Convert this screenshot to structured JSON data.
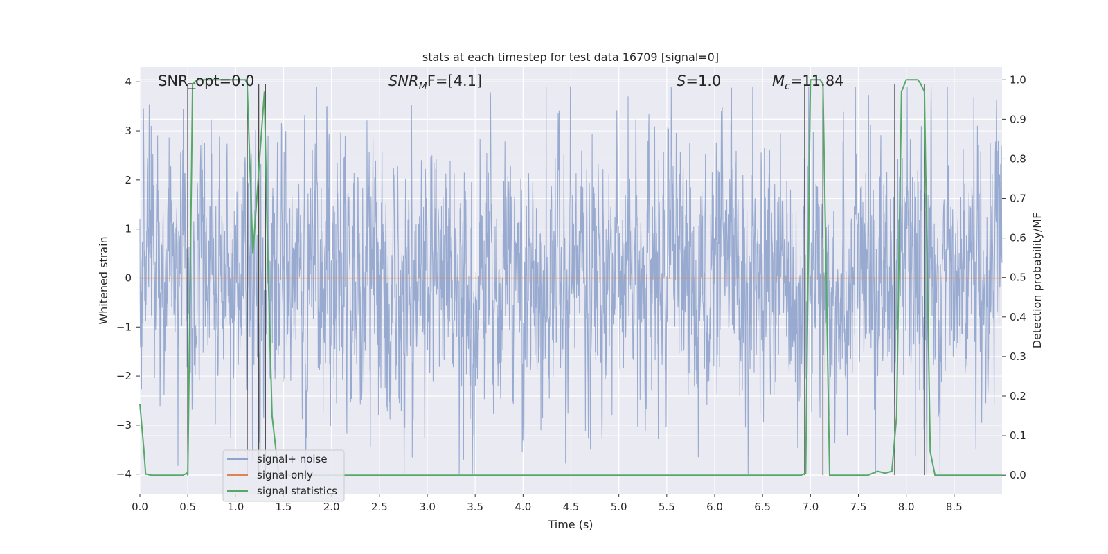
{
  "chart_data": {
    "type": "line",
    "title": "stats at each timestep for test data 16709 [signal=0]",
    "xlabel": "Time (s)",
    "ylabel_left": "Whitened strain",
    "ylabel_right": "Detection probability/MF",
    "xlim": [
      0.0,
      9.0
    ],
    "ylim_left": [
      -4.4,
      4.3
    ],
    "ylim_right": [
      -0.047,
      1.032
    ],
    "grid": true,
    "legend_placement": "lower-left",
    "x_ticks": [
      "0.0",
      "0.5",
      "1.0",
      "1.5",
      "2.0",
      "2.5",
      "3.0",
      "3.5",
      "4.0",
      "4.5",
      "5.0",
      "5.5",
      "6.0",
      "6.5",
      "7.0",
      "7.5",
      "8.0",
      "8.5"
    ],
    "y_ticks_left": [
      "4",
      "3",
      "2",
      "1",
      "0",
      "−1",
      "−2",
      "−3",
      "−4"
    ],
    "y_ticks_right": [
      "1.0",
      "0.9",
      "0.8",
      "0.7",
      "0.6",
      "0.5",
      "0.4",
      "0.3",
      "0.2",
      "0.1",
      "0.0"
    ],
    "annotations": {
      "snr_opt": "SNR_opt=0.0",
      "snr_mf_base": "SNR",
      "snr_mf_sub": "M",
      "snr_mf_rest": "F=[4.1]",
      "s_stat_base": "S",
      "s_stat_rest": "=1.0",
      "mc_base": "M",
      "mc_sub": "c",
      "mc_rest": "=11.84"
    },
    "series": [
      {
        "name": "signal+ noise",
        "color": "#8fa3cc",
        "description_of_envelope": "dense whitened noise approx between -2.5 and 3.0 with spikes to ±4",
        "amplitude_range": [
          -4.0,
          3.9
        ]
      },
      {
        "name": "signal only",
        "color": "#dd8452",
        "values_constant": 0.0
      },
      {
        "name": "signal statistics",
        "color": "#55a868",
        "x": [
          0.0,
          0.04,
          0.06,
          0.12,
          0.2,
          0.3,
          0.4,
          0.45,
          0.49,
          0.5,
          0.55,
          0.6,
          0.8,
          1.0,
          1.1,
          1.12,
          1.18,
          1.25,
          1.3,
          1.33,
          1.38,
          1.45,
          1.5,
          2.0,
          3.0,
          4.0,
          5.0,
          6.0,
          6.9,
          6.95,
          7.0,
          7.1,
          7.13,
          7.2,
          7.25,
          7.5,
          7.6,
          7.7,
          7.78,
          7.85,
          7.9,
          7.95,
          8.0,
          8.05,
          8.12,
          8.15,
          8.19,
          8.25,
          8.3,
          8.5,
          8.75,
          9.0
        ],
        "y": [
          0.18,
          0.07,
          0.003,
          0.0,
          0.0,
          0.0,
          0.0,
          0.0,
          0.005,
          0.0,
          0.99,
          1.0,
          1.0,
          1.0,
          1.0,
          0.99,
          0.56,
          0.8,
          0.97,
          0.6,
          0.15,
          0.0,
          0.0,
          0.0,
          0.0,
          0.0,
          0.0,
          0.0,
          0.0,
          0.005,
          1.0,
          1.0,
          0.99,
          0.0,
          0.0,
          0.0,
          0.0,
          0.01,
          0.005,
          0.01,
          0.15,
          0.97,
          1.0,
          1.0,
          1.0,
          0.99,
          0.97,
          0.06,
          0.0,
          0.0,
          0.0,
          0.0
        ]
      }
    ],
    "vertical_markers": [
      0.5,
      1.12,
      1.24,
      1.31,
      6.94,
      7.13,
      7.88,
      8.19
    ]
  },
  "legend": {
    "items": [
      {
        "label": "signal+ noise",
        "color": "#8fa3cc"
      },
      {
        "label": "signal only",
        "color": "#dd8452"
      },
      {
        "label": "signal statistics",
        "color": "#55a868"
      }
    ]
  },
  "colors": {
    "axes_background": "#eaeaf2",
    "grid": "#ffffff",
    "marker_line": "#4d4d4d"
  }
}
